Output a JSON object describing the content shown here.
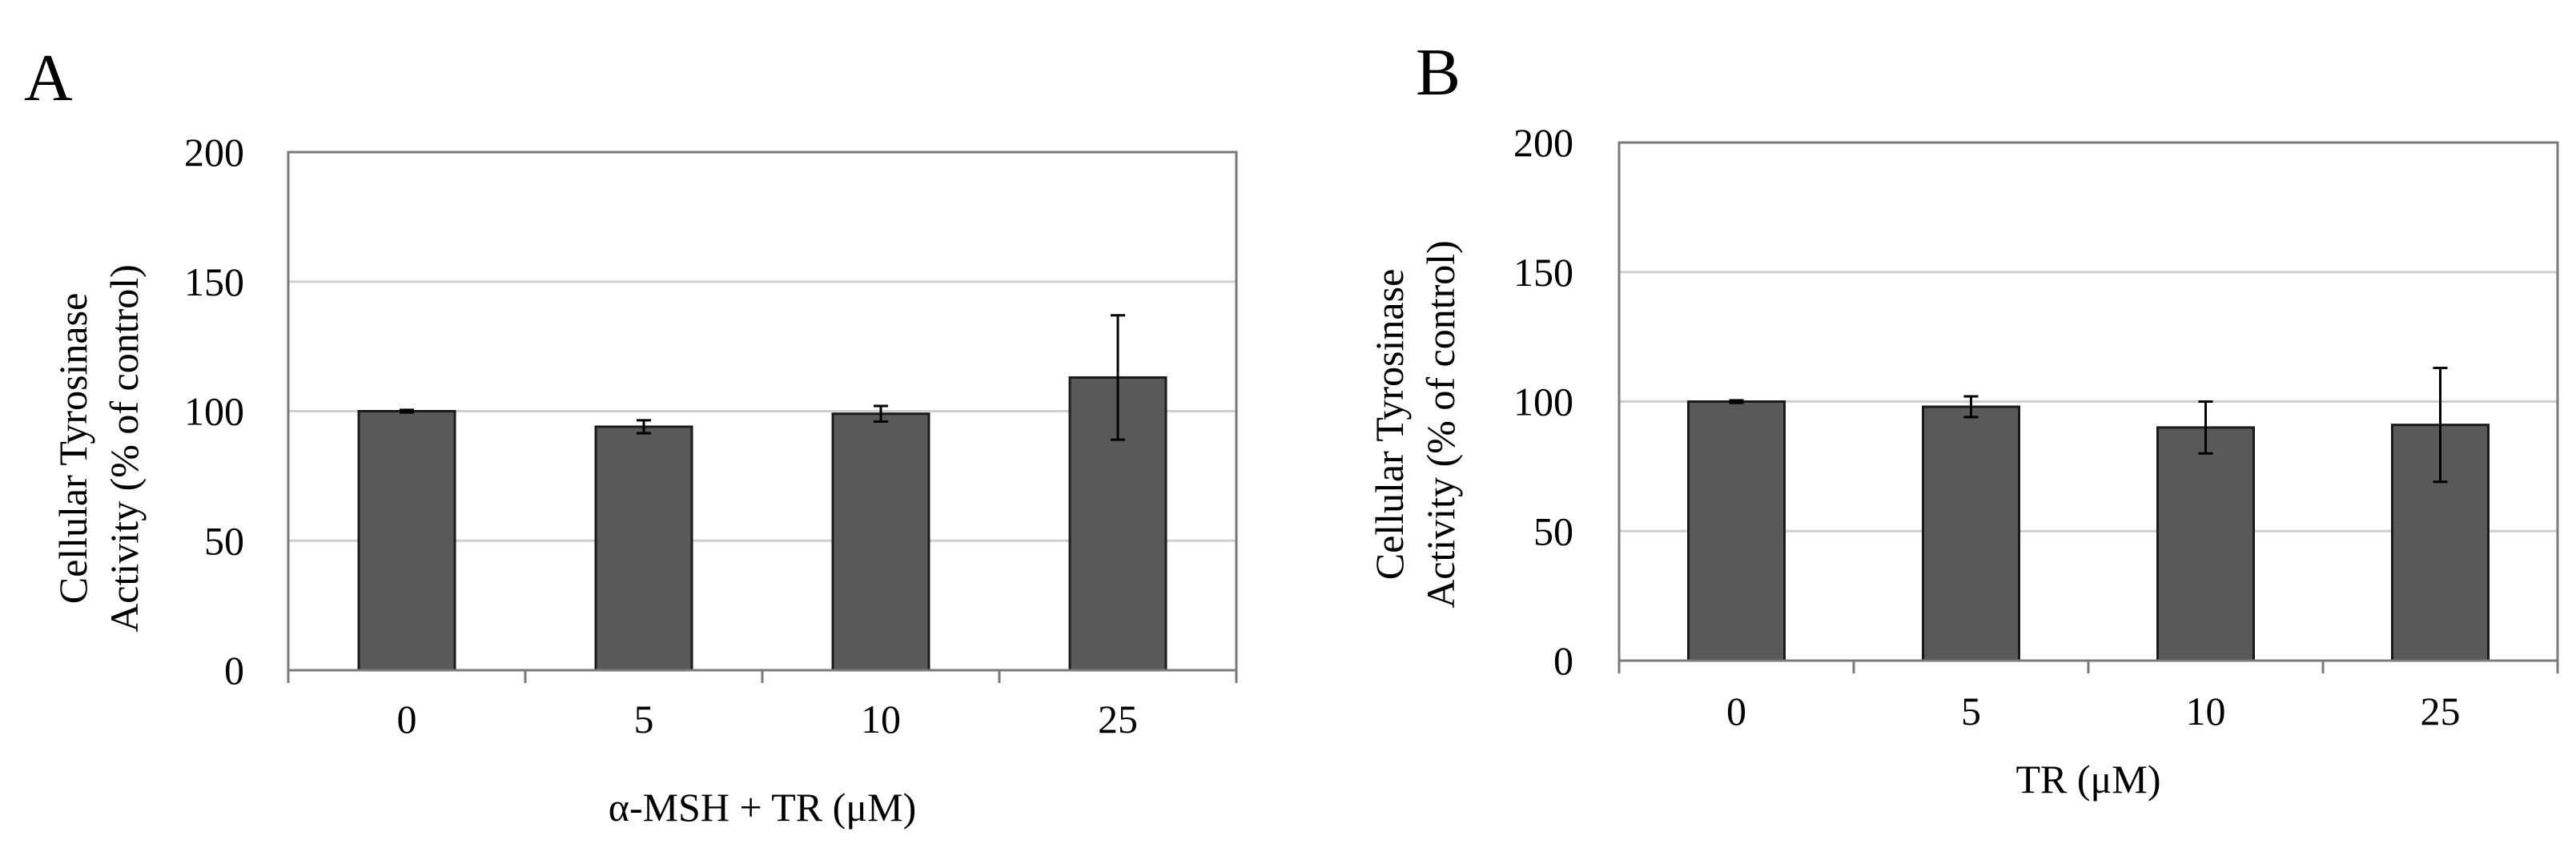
{
  "chart_data": [
    {
      "panel": "A",
      "type": "bar",
      "categories": [
        "0",
        "5",
        "10",
        "25"
      ],
      "values": [
        100,
        94,
        99,
        113
      ],
      "errors": [
        0.5,
        2.5,
        3,
        24
      ],
      "ylim": [
        0,
        200
      ],
      "yticks": [
        "0",
        "50",
        "100",
        "150",
        "200"
      ],
      "ytick_values": [
        0,
        50,
        100,
        150,
        200
      ],
      "ylabel_line1": "Cellular Tyrosinase",
      "ylabel_line2": "Activity (% of control)",
      "xlabel": "α-MSH + TR (μM)",
      "grid": true,
      "bar_color": "#595959"
    },
    {
      "panel": "B",
      "type": "bar",
      "categories": [
        "0",
        "5",
        "10",
        "25"
      ],
      "values": [
        100,
        98,
        90,
        91
      ],
      "errors": [
        0.5,
        4,
        10,
        22
      ],
      "ylim": [
        0,
        200
      ],
      "yticks": [
        "0",
        "50",
        "100",
        "150",
        "200"
      ],
      "ytick_values": [
        0,
        50,
        100,
        150,
        200
      ],
      "ylabel_line1": "Cellular Tyrosinase",
      "ylabel_line2": "Activity (% of control)",
      "xlabel": "TR (μM)",
      "grid": true,
      "bar_color": "#595959"
    }
  ]
}
